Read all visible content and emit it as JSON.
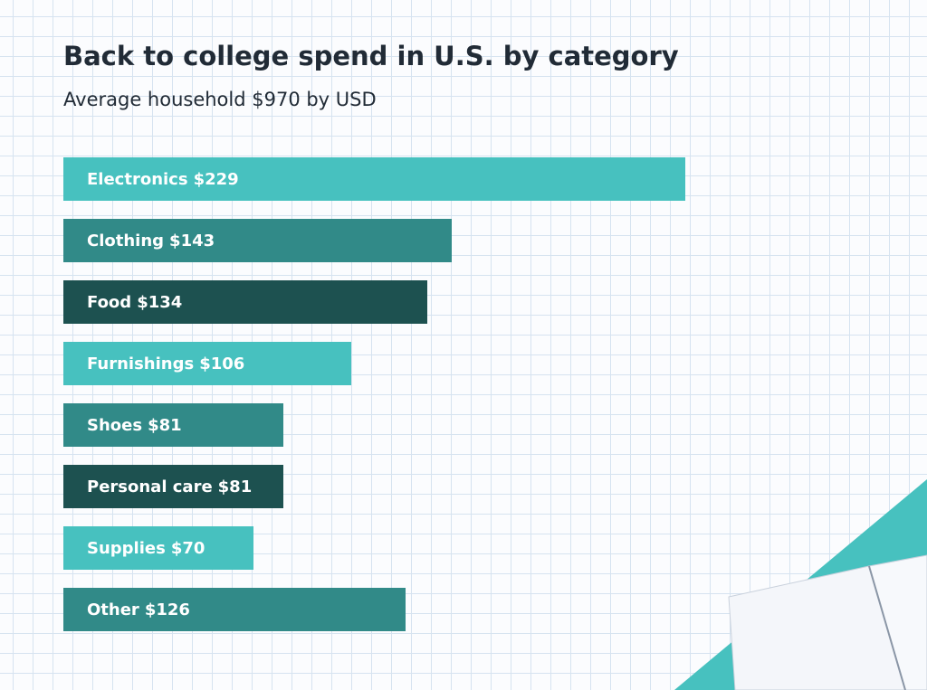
{
  "chart_data": {
    "type": "bar",
    "orientation": "horizontal",
    "title": "Back to college spend in U.S. by category",
    "subtitle": "Average household $970 by USD",
    "categories": [
      "Electronics",
      "Clothing",
      "Food",
      "Furnishings",
      "Shoes",
      "Personal care",
      "Supplies",
      "Other"
    ],
    "values": [
      229,
      143,
      134,
      106,
      81,
      81,
      70,
      126
    ],
    "value_labels": [
      "$229",
      "$143",
      "$134",
      "$106",
      "$81",
      "$81",
      "$70",
      "$126"
    ],
    "colors": [
      "#47c1bf",
      "#318a88",
      "#1d5150",
      "#47c1bf",
      "#318a88",
      "#1d5150",
      "#47c1bf",
      "#318a88"
    ]
  }
}
